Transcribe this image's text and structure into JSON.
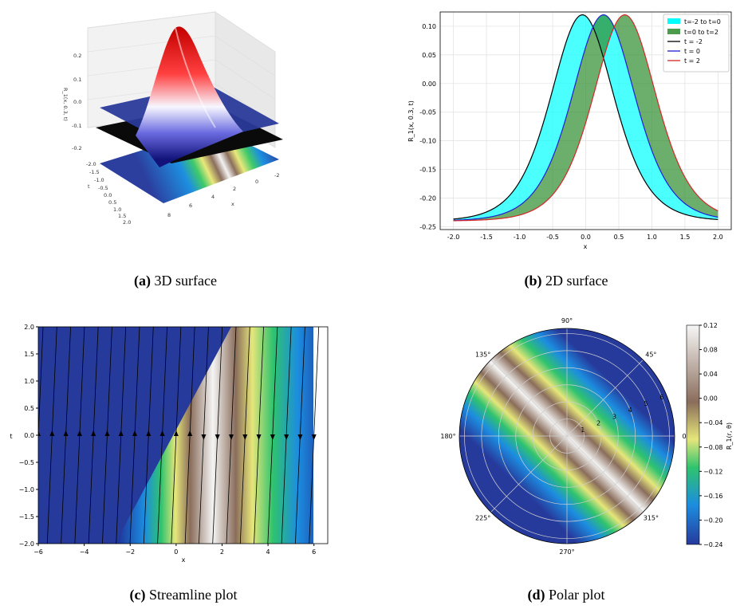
{
  "captions": {
    "a": {
      "tag": "(a)",
      "text": "3D surface"
    },
    "b": {
      "tag": "(b)",
      "text": "2D surface"
    },
    "c": {
      "tag": "(c)",
      "text": "Streamline plot"
    },
    "d": {
      "tag": "(d)",
      "text": "Polar plot"
    }
  },
  "colors": {
    "cyan_fill": "#00ffff",
    "green_fill": "#2e8b2e",
    "red": "#d62728",
    "blue": "#1f1fd0",
    "black": "#000000"
  },
  "chart_data": [
    {
      "id": "surface3d",
      "type": "surface3d",
      "title": "",
      "zlabel": "R_1(x, 0.3, t)",
      "xlabel": "x",
      "ylabel": "t",
      "z_ticks": [
        "0.2",
        "0.1",
        "0.0",
        "-0.1",
        "-0.2"
      ],
      "t_ticks": [
        "-2.0",
        "-1.5",
        "-1.0",
        "-0.5",
        "0.0",
        "0.5",
        "1.0",
        "1.5",
        "2.0"
      ],
      "x_ticks": [
        "8",
        "6",
        "4",
        "2",
        "0",
        "-2"
      ]
    },
    {
      "id": "line2d",
      "type": "line",
      "xlabel": "x",
      "ylabel": "R_1(x, 0.3, t)",
      "xlim": [
        -2.0,
        2.0
      ],
      "ylim": [
        -0.25,
        0.12
      ],
      "x_ticks": [
        "-2.0",
        "-1.5",
        "-1.0",
        "-0.5",
        "0.0",
        "0.5",
        "1.0",
        "1.5",
        "2.0"
      ],
      "y_ticks": [
        "0.10",
        "0.05",
        "0.00",
        "-0.05",
        "-0.10",
        "-0.15",
        "-0.20",
        "-0.25"
      ],
      "baseline": -0.24,
      "amplitude": 0.36,
      "series": [
        {
          "name": "t = -2",
          "center": -0.05,
          "color": "#000000"
        },
        {
          "name": "t = 0",
          "center": 0.27,
          "color": "#1f1fd0"
        },
        {
          "name": "t = 2",
          "center": 0.59,
          "color": "#d62728"
        }
      ],
      "fills": [
        {
          "name": "t=-2 to t=0",
          "color": "#00ffff"
        },
        {
          "name": "t=0 to t=2",
          "color": "#2e8b2e"
        }
      ],
      "legend": "top-right"
    },
    {
      "id": "stream",
      "type": "streamline",
      "xlabel": "x",
      "ylabel": "t",
      "xlim": [
        -6,
        6
      ],
      "ylim": [
        -2.0,
        2.0
      ],
      "x_ticks": [
        "-6",
        "-4",
        "-2",
        "0",
        "2",
        "4",
        "6"
      ],
      "y_ticks": [
        "2.0",
        "1.5",
        "1.0",
        "0.5",
        "0.0",
        "-0.5",
        "-1.0",
        "-1.5",
        "-2.0"
      ]
    },
    {
      "id": "polar",
      "type": "polar",
      "angle_labels": [
        "90°",
        "45°",
        "0°",
        "315°",
        "270°",
        "225°",
        "180°",
        "135°"
      ],
      "radial_labels": [
        "1",
        "2",
        "3",
        "4",
        "5",
        "6"
      ],
      "colorbar_label": "R_1(r, θ)",
      "colorbar_ticks": [
        "0.12",
        "0.08",
        "0.04",
        "0.00",
        "-0.04",
        "-0.08",
        "-0.12",
        "-0.16",
        "-0.20",
        "-0.24"
      ]
    }
  ]
}
